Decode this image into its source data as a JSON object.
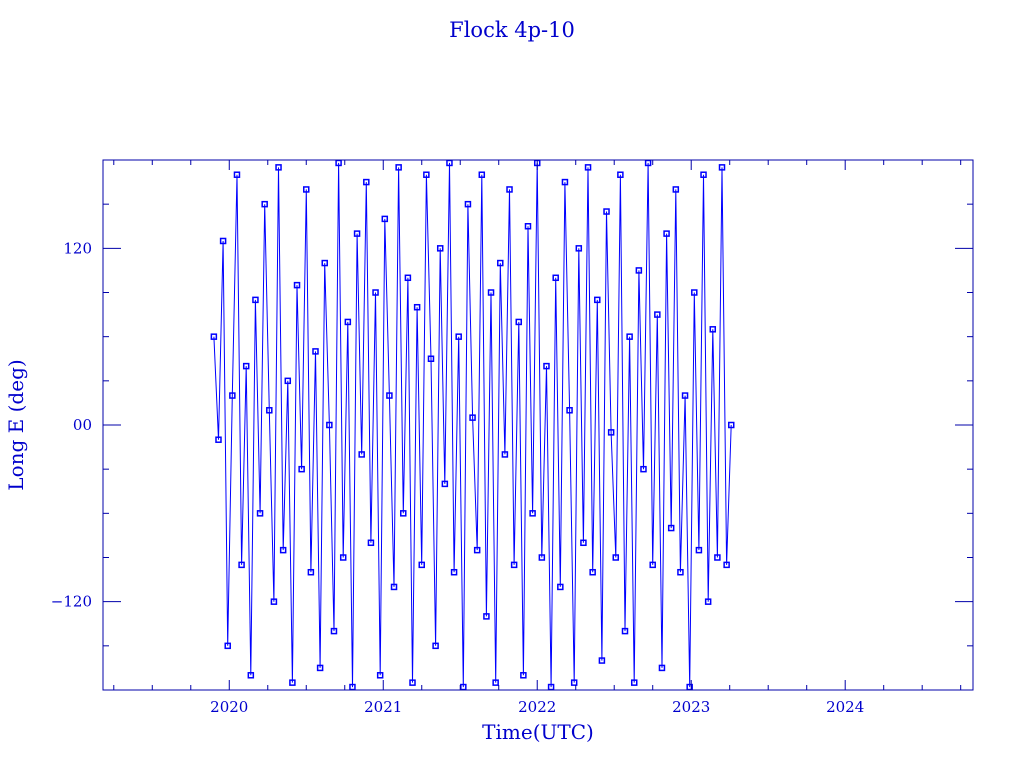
{
  "chart_data": {
    "type": "line",
    "title": "Flock 4p-10",
    "xlabel": "Time(UTC)",
    "ylabel": "Long E (deg)",
    "xlim": [
      2019.18,
      2024.83
    ],
    "ylim": [
      -180,
      180
    ],
    "xticks": [
      2020,
      2021,
      2022,
      2023,
      2024
    ],
    "xtick_labels": [
      "2020",
      "2021",
      "2022",
      "2023",
      "2024"
    ],
    "yticks": [
      -120,
      0,
      120
    ],
    "ytick_labels": [
      "−120",
      "00",
      "120"
    ],
    "grid": false,
    "color": "#0000ff",
    "axis_color": "#0000aa",
    "marker": "square",
    "series": [
      {
        "x": [
          2019.9,
          2019.93,
          2019.96,
          2019.99,
          2020.02,
          2020.05,
          2020.08,
          2020.11,
          2020.14,
          2020.17,
          2020.2,
          2020.23,
          2020.26,
          2020.29,
          2020.32,
          2020.35,
          2020.38,
          2020.41,
          2020.44,
          2020.47,
          2020.5,
          2020.53,
          2020.56,
          2020.59,
          2020.62,
          2020.65,
          2020.68,
          2020.71,
          2020.74,
          2020.77,
          2020.8,
          2020.83,
          2020.86,
          2020.89,
          2020.92,
          2020.95,
          2020.98,
          2021.01,
          2021.04,
          2021.07,
          2021.1,
          2021.13,
          2021.16,
          2021.19,
          2021.22,
          2021.25,
          2021.28,
          2021.31,
          2021.34,
          2021.37,
          2021.4,
          2021.43,
          2021.46,
          2021.49,
          2021.52,
          2021.55,
          2021.58,
          2021.61,
          2021.64,
          2021.67,
          2021.7,
          2021.73,
          2021.76,
          2021.79,
          2021.82,
          2021.85,
          2021.88,
          2021.91,
          2021.94,
          2021.97,
          2022.0,
          2022.03,
          2022.06,
          2022.09,
          2022.12,
          2022.15,
          2022.18,
          2022.21,
          2022.24,
          2022.27,
          2022.3,
          2022.33,
          2022.36,
          2022.39,
          2022.42,
          2022.45,
          2022.48,
          2022.51,
          2022.54,
          2022.57,
          2022.6,
          2022.63,
          2022.66,
          2022.69,
          2022.72,
          2022.75,
          2022.78,
          2022.81,
          2022.84,
          2022.87,
          2022.9,
          2022.93,
          2022.96,
          2022.99,
          2023.02,
          2023.05,
          2023.08,
          2023.11,
          2023.14,
          2023.17,
          2023.2,
          2023.23,
          2023.26
        ],
        "y": [
          60,
          -10,
          125,
          -150,
          20,
          170,
          -95,
          40,
          -170,
          85,
          -60,
          150,
          10,
          -120,
          175,
          -85,
          30,
          -175,
          95,
          -30,
          160,
          -100,
          50,
          -165,
          110,
          0,
          -140,
          178,
          -90,
          70,
          -178,
          130,
          -20,
          165,
          -80,
          90,
          -170,
          140,
          20,
          -110,
          175,
          -60,
          100,
          -175,
          80,
          -95,
          170,
          45,
          -150,
          120,
          -40,
          178,
          -100,
          60,
          -178,
          150,
          5,
          -85,
          170,
          -130,
          90,
          -175,
          110,
          -20,
          160,
          -95,
          70,
          -170,
          135,
          -60,
          178,
          -90,
          40,
          -178,
          100,
          -110,
          165,
          10,
          -175,
          120,
          -80,
          175,
          -100,
          85,
          -160,
          145,
          -5,
          -90,
          170,
          -140,
          60,
          -175,
          105,
          -30,
          178,
          -95,
          75,
          -165,
          130,
          -70,
          160,
          -100,
          20,
          -178,
          90,
          -85,
          170,
          -120,
          65,
          -90,
          175,
          -95,
          0
        ]
      }
    ]
  }
}
